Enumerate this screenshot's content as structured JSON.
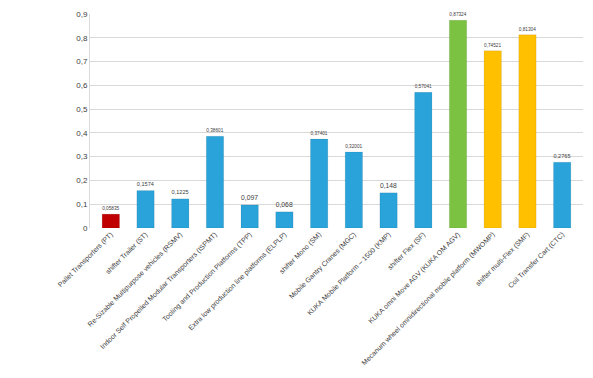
{
  "chart_data": {
    "type": "bar",
    "categories": [
      "Pallet Transporters (PT)",
      "shifter Trailer (ST)",
      "Re-Sizable Multipurpose vehicles (RSMV)",
      "Indoor Self Propelled Modular Transporters (ISPMT)",
      "Tooling and Production Platforms (TPP)",
      "Extra low production line platforms (ELPLP)",
      "shifter Mono (SM)",
      "Mobile Gantry Cranes (MGC)",
      "KUKA Mobile Platform – 1500 (KMP)",
      "shifter Flex (SF)",
      "KUKA omni Move AGV (KUKA OM AGV)",
      "Mecanum wheel omnidirectional mobile platform (MWOMP)",
      "shifter multi-Flex (SMF)",
      "Coil Transfer Cart (CTC)"
    ],
    "values": [
      0.05835,
      0.1574,
      0.1225,
      0.38601,
      0.097,
      0.068,
      0.37401,
      0.32001,
      0.148,
      0.57041,
      0.87324,
      0.74521,
      0.81304,
      0.2765
    ],
    "value_labels": [
      "0,05835",
      "0,1574",
      "0,1225",
      "0,38601",
      "0,097",
      "0,068",
      "0,37401",
      "0,32001",
      "0,148",
      "0,57041",
      "0,87324",
      "0,74521",
      "0,81304",
      "0,2765"
    ],
    "colors": [
      "#c00000",
      "#29a3d9",
      "#29a3d9",
      "#29a3d9",
      "#29a3d9",
      "#29a3d9",
      "#29a3d9",
      "#29a3d9",
      "#29a3d9",
      "#29a3d9",
      "#7cc242",
      "#ffc000",
      "#ffc000",
      "#29a3d9"
    ],
    "ylim": [
      0,
      0.9
    ],
    "yticks": [
      0,
      {
        "value": 0.1,
        "label": "0,1"
      },
      {
        "value": 0.2,
        "label": "0,2"
      },
      {
        "value": 0.3,
        "label": "0,3"
      },
      {
        "value": 0.4,
        "label": "0,4"
      },
      {
        "value": 0.5,
        "label": "0,5"
      },
      {
        "value": 0.6,
        "label": "0,6"
      },
      {
        "value": 0.7,
        "label": "0,7"
      },
      {
        "value": 0.8,
        "label": "0,8"
      },
      {
        "value": 0.9,
        "label": "0,9"
      }
    ],
    "grid": true,
    "data_labels": true
  }
}
